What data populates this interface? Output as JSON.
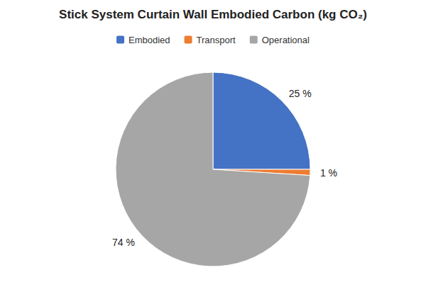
{
  "chart_data": {
    "type": "pie",
    "title": "Stick System Curtain Wall  Embodied Carbon (kg CO₂)",
    "categories": [
      "Embodied",
      "Transport",
      "Operational"
    ],
    "values": [
      25,
      1,
      74
    ],
    "value_labels": [
      "25 %",
      "1 %",
      "74 %"
    ],
    "colors": [
      "#4472C4",
      "#ED7D31",
      "#A6A6A6"
    ],
    "data_labels": true,
    "legend": "top"
  }
}
